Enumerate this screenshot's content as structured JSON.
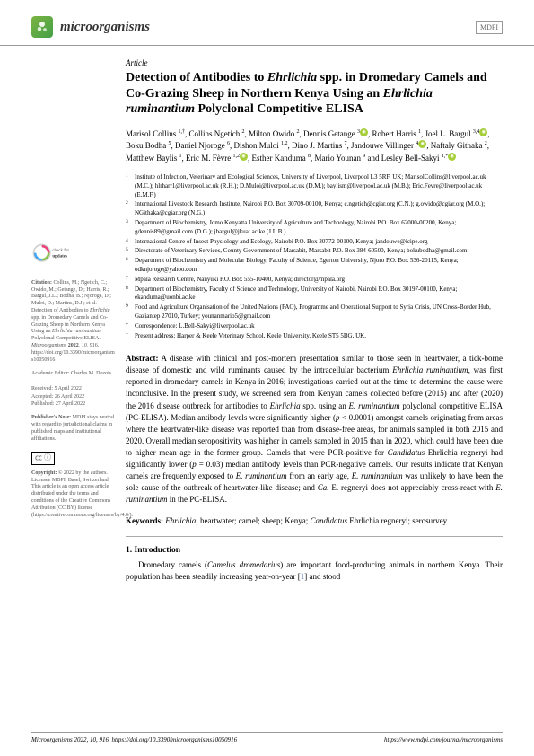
{
  "header": {
    "journal": "microorganisms",
    "publisher": "MDPI"
  },
  "article_type": "Article",
  "title_part1": "Detection of Antibodies to ",
  "title_italic1": "Ehrlichia",
  "title_part2": " spp. in Dromedary Camels and Co-Grazing Sheep in Northern Kenya Using an ",
  "title_italic2": "Ehrlichia ruminantium",
  "title_part3": " Polyclonal Competitive ELISA",
  "authors_html": "Marisol Collins <sup>1,†</sup>, Collins Ngetich <sup>2</sup>, Milton Owido <sup>2</sup>, Dennis Getange <sup>3</sup><span class='orcid'>◉</span>, Robert Harris <sup>1</sup>, Joel L. Bargul <sup>3,4</sup><span class='orcid'>◉</span>, Boku Bodha <sup>5</sup>, Daniel Njoroge <sup>6</sup>, Dishon Muloi <sup>1,2</sup>, Dino J. Martins <sup>7</sup>, Jandouwe Villinger <sup>4</sup><span class='orcid'>◉</span>, Naftaly Githaka <sup>2</sup>, Matthew Baylis <sup>1</sup>, Eric M. Fèvre <sup>1,2</sup><span class='orcid'>◉</span>, Esther Kanduma <sup>8</sup>, Mario Younan <sup>9</sup> and Lesley Bell-Sakyi <sup>1,*</sup><span class='orcid'>◉</span>",
  "affiliations": [
    {
      "n": "1",
      "t": "Institute of Infection, Veterinary and Ecological Sciences, University of Liverpool, Liverpool L3 5RF, UK; MarisolCollins@liverpool.ac.uk (M.C.); hlrharr1@liverpool.ac.uk (R.H.); D.Muloi@liverpool.ac.uk (D.M.); baylism@liverpool.ac.uk (M.B.); Eric.Fevre@liverpool.ac.uk (E.M.F.)"
    },
    {
      "n": "2",
      "t": "International Livestock Research Institute, Nairobi P.O. Box 30709-00100, Kenya; c.ngetich@cgiar.org (C.N.); g.owido@cgiar.org (M.O.); NGithaka@cgiar.org (N.G.)"
    },
    {
      "n": "3",
      "t": "Department of Biochemistry, Jomo Kenyatta University of Agriculture and Technology, Nairobi P.O. Box 62000-00200, Kenya; gdennis89@gmail.com (D.G.); jbargul@jkuat.ac.ke (J.L.B.)"
    },
    {
      "n": "4",
      "t": "International Centre of Insect Physiology and Ecology, Nairobi P.O. Box 30772-00100, Kenya; jandouwe@icipe.org"
    },
    {
      "n": "5",
      "t": "Directorate of Veterinary Services, County Government of Marsabit, Marsabit P.O. Box 384-60500, Kenya; bokubodha@gmail.com"
    },
    {
      "n": "6",
      "t": "Department of Biochemistry and Molecular Biology, Faculty of Science, Egerton University, Njoro P.O. Box 536-20115, Kenya; odknjoroge@yahoo.com"
    },
    {
      "n": "7",
      "t": "Mpala Research Centre, Nanyuki P.O. Box 555-10400, Kenya; director@mpala.org"
    },
    {
      "n": "8",
      "t": "Department of Biochemistry, Faculty of Science and Technology, University of Nairobi, Nairobi P.O. Box 30197-00100, Kenya; ekanduma@uonbi.ac.ke"
    },
    {
      "n": "9",
      "t": "Food and Agriculture Organisation of the United Nations (FAO), Programme and Operational Support to Syria Crisis, UN Cross-Border Hub, Gaziantep 27010, Turkey; younanmario5@gmail.com"
    },
    {
      "n": "*",
      "t": "Correspondence: L.Bell-Sakyi@liverpool.ac.uk"
    },
    {
      "n": "†",
      "t": "Present address: Harper & Keele Veterinary School, Keele University, Keele ST5 5BG, UK."
    }
  ],
  "sidebar": {
    "check_label": "check for updates",
    "citation_label": "Citation:",
    "citation_body": " Collins, M.; Ngetich, C.; Owido, M.; Getange, D.; Harris, R.; Bargul, J.L.; Bodha, B.; Njoroge, D.; Muloi, D.; Martins, D.J.; et al. Detection of Antibodies to <i>Ehrlichia</i> spp. in Dromedary Camels and Co-Grazing Sheep in Northern Kenya Using an <i>Ehrlichia ruminantium</i> Polyclonal Competitive ELISA. <i>Microorganisms</i> <b>2022</b>, <i>10</i>, 916. https://doi.org/10.3390/microorganisms10050916",
    "editor": "Academic Editor: Charles M. Dozois",
    "dates": {
      "received": "Received: 5 April 2022",
      "accepted": "Accepted: 26 April 2022",
      "published": "Published: 27 April 2022"
    },
    "note_label": "Publisher's Note:",
    "note_body": " MDPI stays neutral with regard to jurisdictional claims in published maps and institutional affiliations.",
    "cc": "CC  BY",
    "copyright_label": "Copyright:",
    "copyright_body": " © 2022 by the authors. Licensee MDPI, Basel, Switzerland. This article is an open access article distributed under the terms and conditions of the Creative Commons Attribution (CC BY) license (https://creativecommons.org/licenses/by/4.0/)."
  },
  "abstract_label": "Abstract:",
  "abstract_body": " A disease with clinical and post-mortem presentation similar to those seen in heartwater, a tick-borne disease of domestic and wild ruminants caused by the intracellular bacterium <span class='italic'>Ehrlichia ruminantium</span>, was first reported in dromedary camels in Kenya in 2016; investigations carried out at the time to determine the cause were inconclusive. In the present study, we screened sera from Kenyan camels collected before (2015) and after (2020) the 2016 disease outbreak for antibodies to <span class='italic'>Ehrlichia</span> spp. using an <span class='italic'>E. ruminantium</span> polyclonal competitive ELISA (PC-ELISA). Median antibody levels were significantly higher (<span class='italic'>p</span> < 0.0001) amongst camels originating from areas where the heartwater-like disease was reported than from disease-free areas, for animals sampled in both 2015 and 2020. Overall median seropositivity was higher in camels sampled in 2015 than in 2020, which could have been due to higher mean age in the former group. Camels that were PCR-positive for <span class='italic'>Candidatus</span> Ehrlichia regneryi had significantly lower (<span class='italic'>p</span> = 0.03) median antibody levels than PCR-negative camels. Our results indicate that Kenyan camels are frequently exposed to <span class='italic'>E. ruminantium</span> from an early age, <span class='italic'>E. ruminantium</span> was unlikely to have been the sole cause of the outbreak of heartwater-like disease; and <span class='italic'>Ca.</span> E. regneryi does not appreciably cross-react with <span class='italic'>E. ruminantium</span> in the PC-ELISA.",
  "keywords_label": "Keywords:",
  "keywords_body": " <span class='italic'>Ehrlichia</span>; heartwater; camel; sheep; Kenya; <span class='italic'>Candidatus</span> Ehrlichia regneryi; serosurvey",
  "intro_title": "1. Introduction",
  "intro_body": "Dromedary camels (<span class='italic'>Camelus dromedarius</span>) are important food-producing animals in northern Kenya. Their population has been steadily increasing year-on-year [<span class='ref-link'>1</span>] and stood",
  "footer": {
    "left": "Microorganisms 2022, 10, 916. https://doi.org/10.3390/microorganisms10050916",
    "right": "https://www.mdpi.com/journal/microorganisms"
  }
}
